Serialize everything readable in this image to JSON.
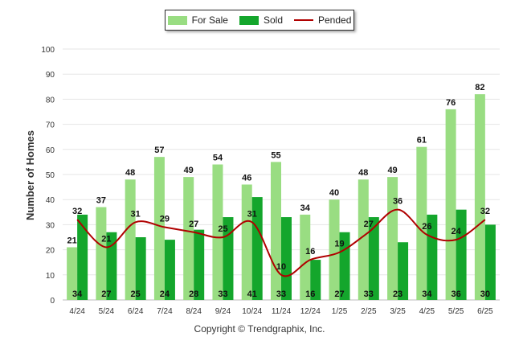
{
  "copyright": "Copyright © Trendgraphix, Inc.",
  "colors": {
    "for_sale": "#99dd82",
    "sold": "#14a62c",
    "pended": "#b00000"
  },
  "chart_data": {
    "type": "bar",
    "categories": [
      "4/24",
      "5/24",
      "6/24",
      "7/24",
      "8/24",
      "9/24",
      "10/24",
      "11/24",
      "12/24",
      "1/25",
      "2/25",
      "3/25",
      "4/25",
      "5/25",
      "6/25"
    ],
    "series": [
      {
        "name": "For Sale",
        "type": "bar",
        "values": [
          21,
          37,
          48,
          57,
          49,
          54,
          46,
          55,
          34,
          40,
          48,
          49,
          61,
          76,
          82
        ]
      },
      {
        "name": "Sold",
        "type": "bar",
        "values": [
          34,
          27,
          25,
          24,
          28,
          33,
          41,
          33,
          16,
          27,
          33,
          23,
          34,
          36,
          30
        ]
      },
      {
        "name": "Pended",
        "type": "line",
        "values": [
          32,
          21,
          31,
          29,
          27,
          25,
          31,
          10,
          16,
          19,
          27,
          36,
          26,
          24,
          32
        ]
      }
    ],
    "ylabel": "Number of Homes",
    "xlabel": "",
    "ylim": [
      0,
      100
    ],
    "yticks": [
      0,
      10,
      20,
      30,
      40,
      50,
      60,
      70,
      80,
      90,
      100
    ],
    "grid": true,
    "legend": "top-center"
  }
}
